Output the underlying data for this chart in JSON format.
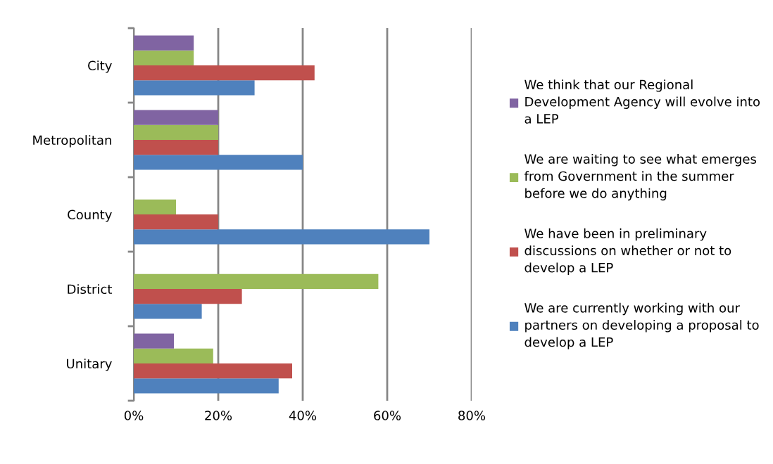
{
  "chart_data": {
    "type": "bar",
    "orientation": "horizontal",
    "categories": [
      "City",
      "Metropolitan",
      "County",
      "District",
      "Unitary"
    ],
    "series": [
      {
        "name": "We are currently working with our partners on developing a proposal to develop a LEP",
        "color": "#4f81bd",
        "values": [
          28.6,
          40,
          70,
          16.1,
          34.3
        ]
      },
      {
        "name": "We have been in preliminary discussions on whether or not to develop a LEP",
        "color": "#c0504d",
        "values": [
          42.8,
          20,
          20,
          25.6,
          37.5
        ]
      },
      {
        "name": "We are waiting to see what emerges from Government in the summer before we do anything",
        "color": "#9bbb59",
        "values": [
          14.2,
          20,
          10,
          57.9,
          18.8
        ]
      },
      {
        "name": "We think that our Regional Development Agency will evolve into a LEP",
        "color": "#8064a2",
        "values": [
          14.2,
          20,
          0,
          0,
          9.5
        ]
      }
    ],
    "xlim": [
      0,
      80
    ],
    "xticks": [
      {
        "value": 0,
        "label": "0%"
      },
      {
        "value": 20,
        "label": "20%"
      },
      {
        "value": 40,
        "label": "40%"
      },
      {
        "value": 60,
        "label": "60%"
      },
      {
        "value": 80,
        "label": "80%"
      }
    ],
    "grid": "x",
    "legend": "right"
  }
}
